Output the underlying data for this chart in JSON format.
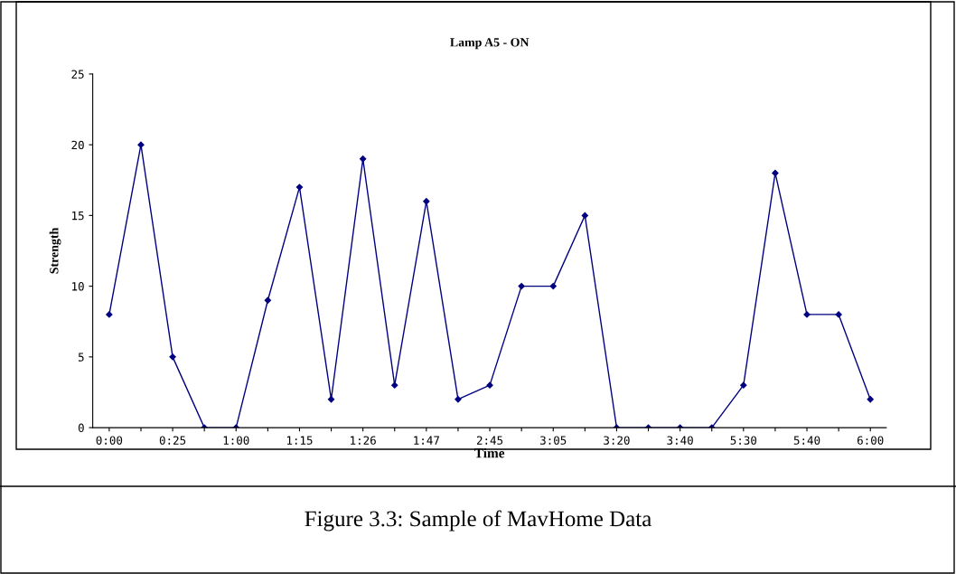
{
  "chart_data": {
    "type": "line",
    "title": "Lamp A5 - ON",
    "xlabel": "Time",
    "ylabel": "Strength",
    "categories": [
      "0:00",
      null,
      "0:25",
      null,
      "1:00",
      null,
      "1:15",
      null,
      "1:26",
      null,
      "1:47",
      null,
      "2:45",
      null,
      "3:05",
      null,
      "3:20",
      null,
      "3:40",
      null,
      "5:30",
      null,
      "5:40",
      null,
      "6:00"
    ],
    "series": [
      {
        "color": "#000080",
        "values": [
          8,
          20,
          5,
          0,
          0,
          9,
          17,
          2,
          19,
          3,
          16,
          2,
          3,
          10,
          10,
          15,
          0,
          0,
          0,
          0,
          3,
          18,
          8,
          8,
          2
        ]
      }
    ],
    "ylim": [
      0,
      25
    ],
    "yticks": [
      0,
      5,
      10,
      15,
      20,
      25
    ],
    "grid": false,
    "legend": false,
    "marker": "diamond",
    "line_style": "solid",
    "annotations": [
      "Figure 3.3: Sample of MavHome Data"
    ]
  }
}
